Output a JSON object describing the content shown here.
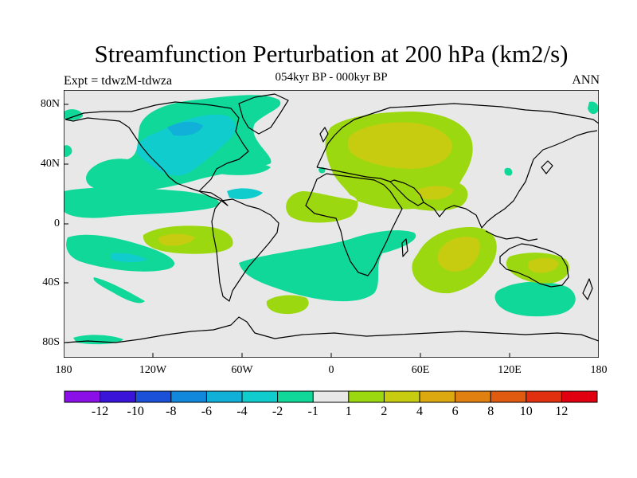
{
  "title": "Streamfunction Perturbation at 200 hPa (km2/s)",
  "subtitle": "054kyr BP - 000kyr BP",
  "left_label": "Expt = tdwzM-tdwza",
  "right_label": "ANN",
  "y_ticks": [
    "80N",
    "40N",
    "0",
    "40S",
    "80S"
  ],
  "x_ticks": [
    "180",
    "120W",
    "60W",
    "0",
    "60E",
    "120E",
    "180"
  ],
  "colorbar": {
    "labels": [
      "-12",
      "-10",
      "-8",
      "-6",
      "-4",
      "-2",
      "-1",
      "1",
      "2",
      "4",
      "6",
      "8",
      "10",
      "12"
    ],
    "colors": [
      "#8b10e8",
      "#3a14d8",
      "#1b50d8",
      "#1188dc",
      "#10b0d8",
      "#10cccc",
      "#10d898",
      "#e8e8e8",
      "#9cd810",
      "#c8cc10",
      "#dcaa10",
      "#e08010",
      "#e05a10",
      "#e03010",
      "#e00010"
    ]
  },
  "colors": {
    "neutral": "#e8e8e8",
    "neg_weak": "#10d898",
    "neg_mid": "#10cccc",
    "neg_strong": "#10b0d8",
    "pos_weak": "#9cd810",
    "pos_mid": "#c8cc10",
    "pos_strong": "#dcaa10"
  }
}
